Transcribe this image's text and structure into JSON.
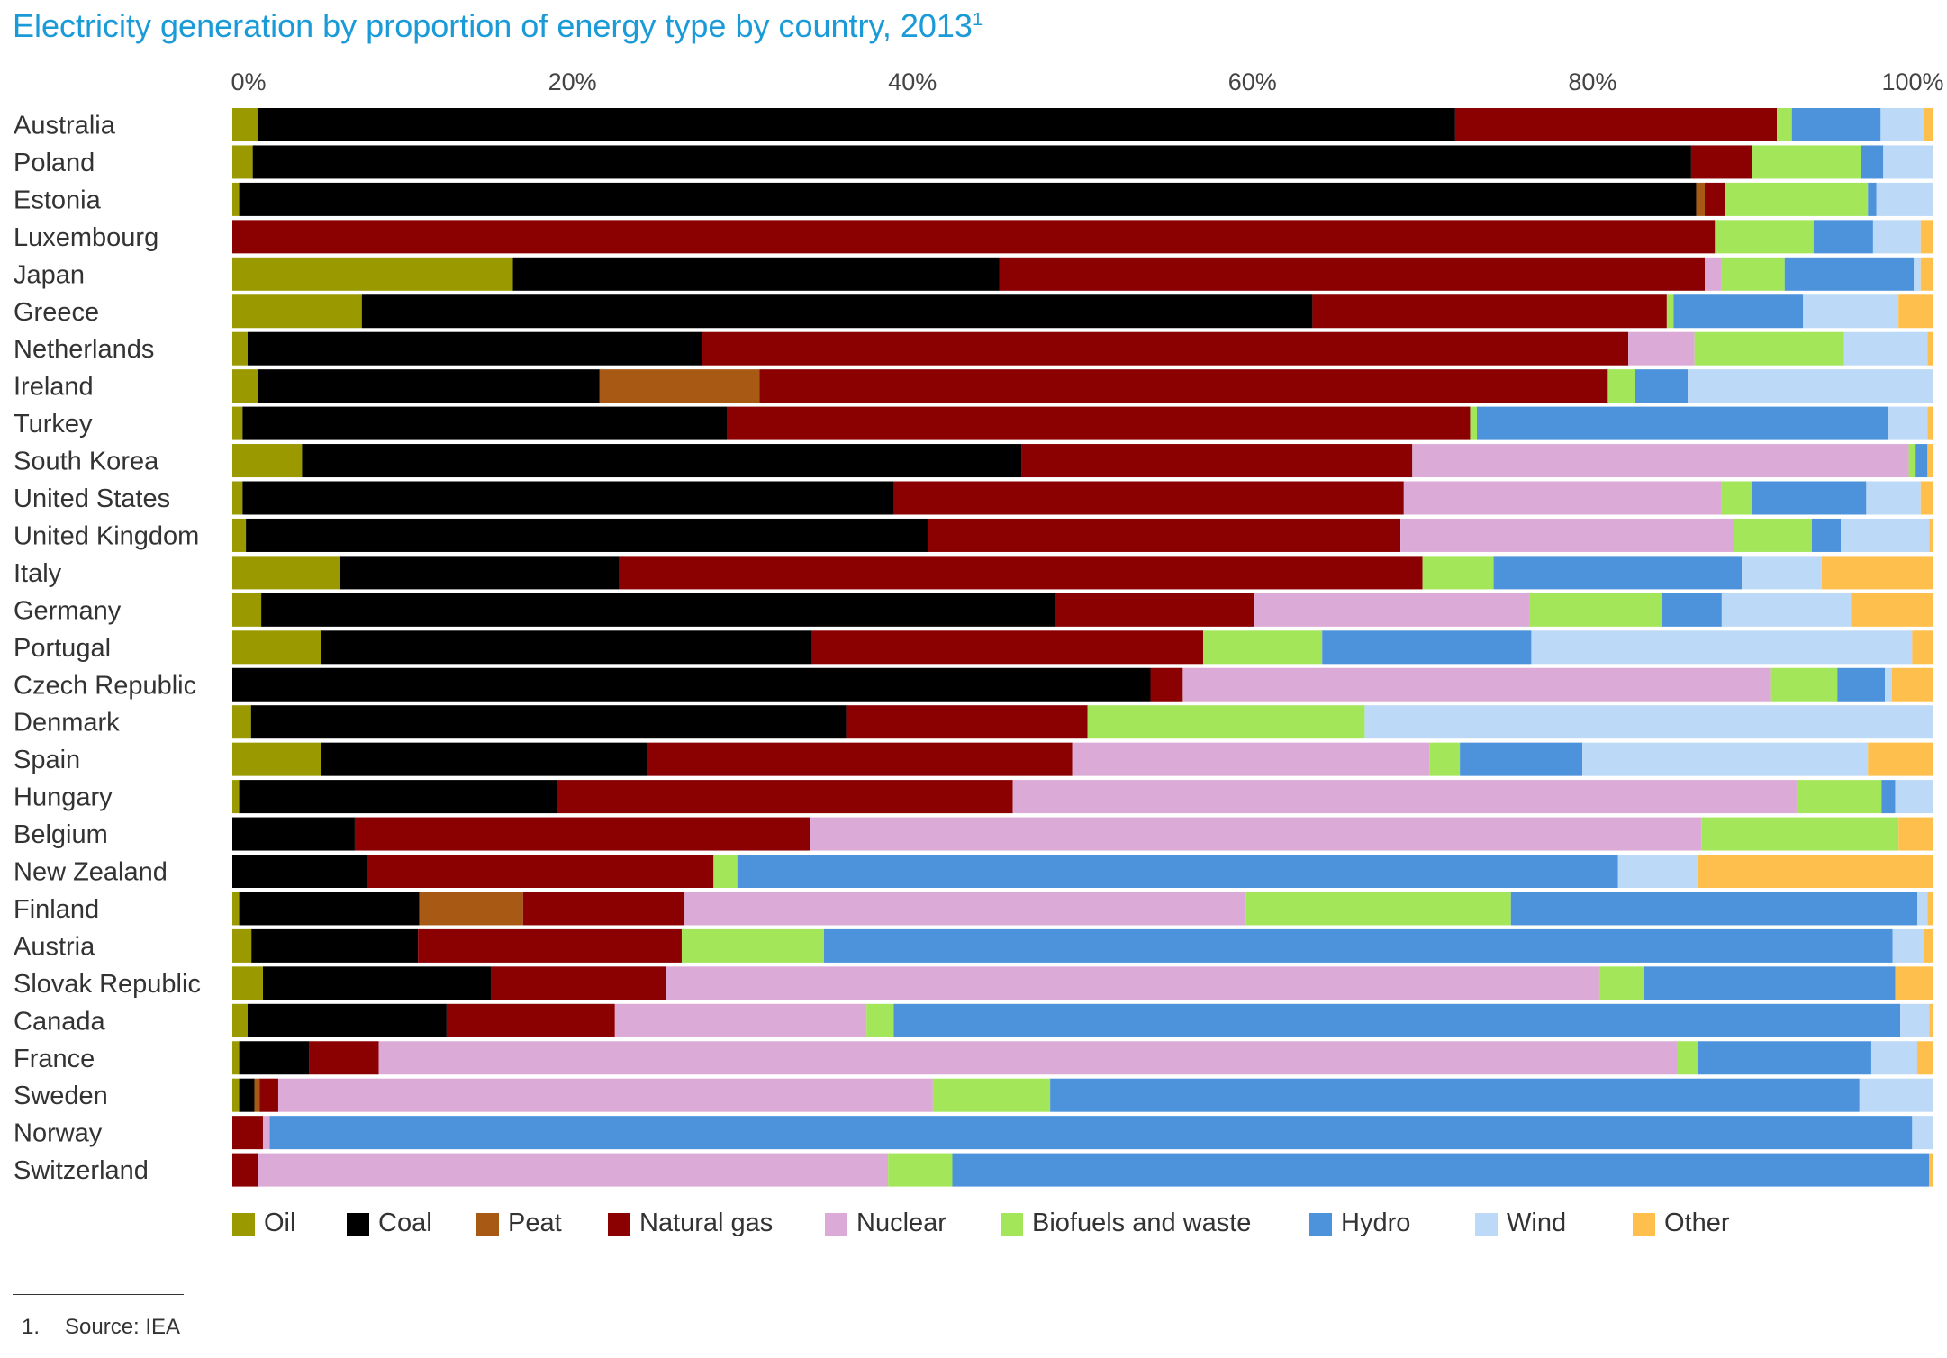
{
  "title": "Electricity generation by proportion of energy type by country, 2013",
  "title_footnote_mark": "1",
  "colors": {
    "Oil": "#9a9a00",
    "Coal": "#000000",
    "Peat": "#a85a15",
    "Natural gas": "#8b0000",
    "Nuclear": "#dcaad6",
    "Biofuels and waste": "#a3e65a",
    "Hydro": "#4c93dc",
    "Wind": "#bcd9f7",
    "Other": "#ffbf4d"
  },
  "footnote": {
    "number": "1.",
    "text": "Source: IEA"
  },
  "chart_data": {
    "type": "bar",
    "orientation": "horizontal",
    "stacked": true,
    "title": "Electricity generation by proportion of energy type by country, 2013",
    "xlabel": "",
    "ylabel": "",
    "xlim": [
      0,
      100
    ],
    "x_ticks": [
      0,
      20,
      40,
      60,
      80,
      100
    ],
    "x_tick_labels": [
      "0%",
      "20%",
      "40%",
      "60%",
      "80%",
      "100%"
    ],
    "legend_position": "bottom",
    "grid": false,
    "categories": [
      "Australia",
      "Poland",
      "Estonia",
      "Luxembourg",
      "Japan",
      "Greece",
      "Netherlands",
      "Ireland",
      "Turkey",
      "South Korea",
      "United States",
      "United Kingdom",
      "Italy",
      "Germany",
      "Portugal",
      "Czech Republic",
      "Denmark",
      "Spain",
      "Hungary",
      "Belgium",
      "New Zealand",
      "Finland",
      "Austria",
      "Slovak Republic",
      "Canada",
      "France",
      "Sweden",
      "Norway",
      "Switzerland"
    ],
    "series": [
      {
        "name": "Oil",
        "values": [
          1.5,
          1.2,
          0.4,
          0,
          16.5,
          7.6,
          0.9,
          1.5,
          0.6,
          4.1,
          0.6,
          0.8,
          6.2,
          1.7,
          5.2,
          0,
          1.1,
          5.2,
          0.4,
          0,
          0,
          0.4,
          1.1,
          1.8,
          0.9,
          0.4,
          0.4,
          0,
          0
        ]
      },
      {
        "name": "Coal",
        "values": [
          71.5,
          84.6,
          85.7,
          0,
          28.6,
          55.8,
          26.7,
          20.1,
          28.5,
          42.3,
          38.3,
          40.1,
          16.1,
          46.7,
          28.9,
          54.0,
          35.0,
          19.2,
          18.7,
          7.2,
          7.9,
          10.6,
          9.6,
          13.4,
          11.7,
          4.1,
          0.9,
          0,
          0
        ]
      },
      {
        "name": "Peat",
        "values": [
          0,
          0,
          0.5,
          0,
          0,
          0,
          0,
          9.4,
          0,
          0,
          0,
          0,
          0,
          0,
          0,
          0,
          0,
          0,
          0,
          0,
          0,
          6.1,
          0,
          0,
          0,
          0,
          0.3,
          0,
          0
        ]
      },
      {
        "name": "Natural gas",
        "values": [
          19.2,
          3.6,
          1.2,
          87.2,
          41.5,
          20.8,
          54.5,
          49.9,
          43.7,
          23.0,
          30.0,
          27.8,
          46.3,
          11.7,
          23.0,
          1.9,
          14.2,
          25.0,
          26.8,
          26.8,
          20.4,
          9.5,
          15.2,
          10.3,
          9.9,
          4.1,
          1.1,
          1.8,
          1.5
        ]
      },
      {
        "name": "Nuclear",
        "values": [
          0,
          0,
          0,
          0,
          1.0,
          0,
          3.9,
          0,
          0,
          29.2,
          18.7,
          19.6,
          0,
          16.2,
          0,
          34.6,
          0,
          21.0,
          46.1,
          52.4,
          0,
          33.0,
          0,
          54.9,
          14.8,
          76.3,
          38.5,
          0.4,
          37.3
        ]
      },
      {
        "name": "Biofuels and waste",
        "values": [
          0.9,
          6.4,
          8.4,
          5.8,
          3.7,
          0.4,
          8.8,
          1.6,
          0.4,
          0.4,
          1.8,
          4.6,
          4.1,
          7.8,
          7.0,
          3.9,
          16.3,
          1.8,
          5.0,
          11.6,
          1.4,
          15.6,
          8.2,
          2.6,
          1.6,
          1.2,
          6.9,
          0,
          3.8
        ]
      },
      {
        "name": "Hydro",
        "values": [
          5.3,
          1.3,
          0.5,
          3.5,
          7.6,
          7.6,
          0,
          3.1,
          24.2,
          0.7,
          6.7,
          1.7,
          14.3,
          3.5,
          12.3,
          2.8,
          0,
          7.2,
          0.8,
          0,
          51.8,
          23.9,
          61.6,
          14.8,
          59.2,
          10.2,
          47.6,
          96.6,
          57.8
        ]
      },
      {
        "name": "Wind",
        "values": [
          2.6,
          2.9,
          3.3,
          2.8,
          0.4,
          5.6,
          4.9,
          14.4,
          2.3,
          0,
          3.2,
          5.2,
          4.6,
          7.6,
          22.4,
          0.4,
          33.4,
          16.8,
          2.2,
          0,
          4.7,
          0.6,
          1.8,
          0,
          1.7,
          2.7,
          4.3,
          1.2,
          0
        ]
      },
      {
        "name": "Other",
        "values": [
          0.5,
          0,
          0,
          0.7,
          0.7,
          2.0,
          0.3,
          0,
          0.3,
          0.3,
          0.7,
          0.2,
          6.4,
          4.8,
          1.2,
          2.4,
          0,
          3.8,
          0,
          2.0,
          13.8,
          0.3,
          0.5,
          2.2,
          0.2,
          0.9,
          0,
          0,
          0.2
        ]
      }
    ]
  }
}
